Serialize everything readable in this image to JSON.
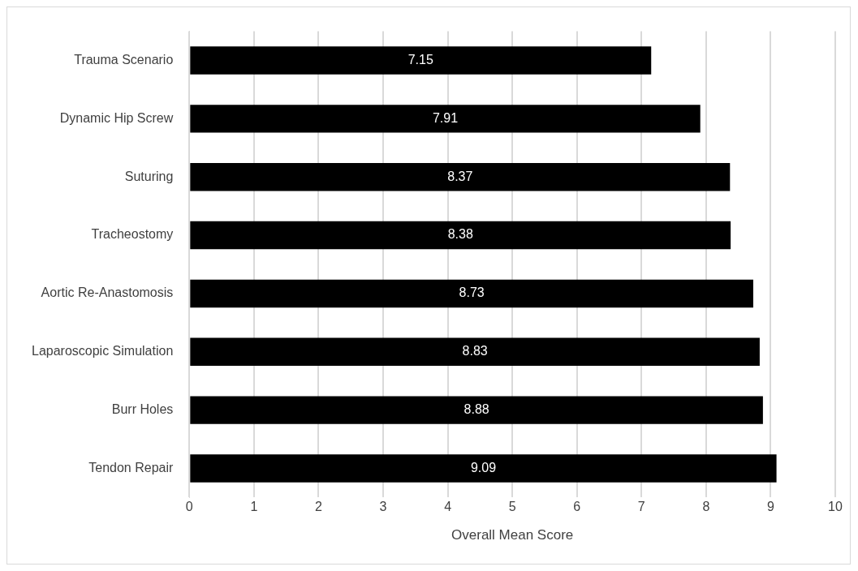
{
  "chart_data": {
    "type": "bar",
    "orientation": "horizontal",
    "xlabel": "Overall Mean Score",
    "categories": [
      "Trauma Scenario",
      "Dynamic Hip Screw",
      "Suturing",
      "Tracheostomy",
      "Aortic Re-Anastomosis",
      "Laparoscopic Simulation",
      "Burr Holes",
      "Tendon Repair"
    ],
    "values": [
      7.15,
      7.91,
      8.37,
      8.38,
      8.73,
      8.83,
      8.88,
      9.09
    ],
    "color": "#000000",
    "xlim": [
      0,
      10
    ],
    "xticks": [
      0,
      1,
      2,
      3,
      4,
      5,
      6,
      7,
      8,
      9,
      10
    ],
    "grid": "x",
    "legend": false,
    "data_labels": true
  }
}
